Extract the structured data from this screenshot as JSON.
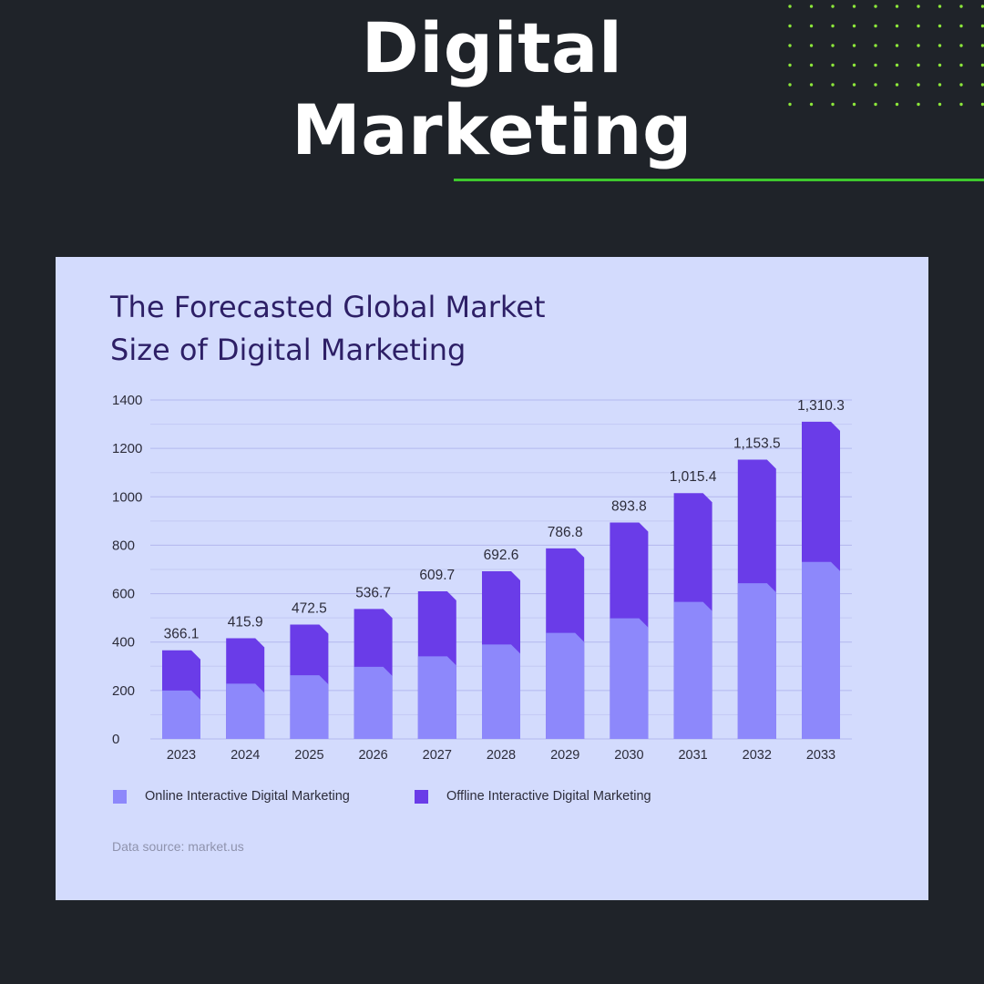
{
  "headline": {
    "line1": "Digital",
    "line2": "Marketing"
  },
  "colors": {
    "background": "#1f2329",
    "card": "#d3dbfd",
    "accent_green": "#3ec82e",
    "dot_green": "#8ce63a",
    "title": "#2d1f66",
    "online": "#8d88fb",
    "offline": "#6a3ce8"
  },
  "chart_data": {
    "type": "bar",
    "stacked": true,
    "title": "The Forecasted Global Market Size of Digital Marketing",
    "title_lines": [
      "The Forecasted Global Market",
      "Size of Digital Marketing"
    ],
    "categories": [
      "2023",
      "2024",
      "2025",
      "2026",
      "2027",
      "2028",
      "2029",
      "2030",
      "2031",
      "2032",
      "2033"
    ],
    "series": [
      {
        "name": "Online Interactive Digital Marketing",
        "values": [
          200,
          228,
          263,
          298,
          341,
          390,
          438,
          498,
          566,
          643,
          731
        ]
      },
      {
        "name": "Offline Interactive Digital Marketing",
        "values": [
          166.1,
          187.9,
          209.5,
          238.7,
          268.7,
          302.6,
          348.8,
          395.8,
          449.4,
          510.5,
          579.3
        ]
      }
    ],
    "totals": [
      366.1,
      415.9,
      472.5,
      536.7,
      609.7,
      692.6,
      786.8,
      893.8,
      1015.4,
      1153.5,
      1310.3
    ],
    "total_labels": [
      "366.1",
      "415.9",
      "472.5",
      "536.7",
      "609.7",
      "692.6",
      "786.8",
      "893.8",
      "1,015.4",
      "1,153.5",
      "1,310.3"
    ],
    "yticks": [
      "0",
      "200",
      "400",
      "600",
      "800",
      "1000",
      "1200",
      "1400"
    ],
    "ylim": [
      0,
      1400
    ],
    "grid": true,
    "legend_position": "bottom-left",
    "xlabel": "",
    "ylabel": ""
  },
  "source": "Data source: market.us"
}
